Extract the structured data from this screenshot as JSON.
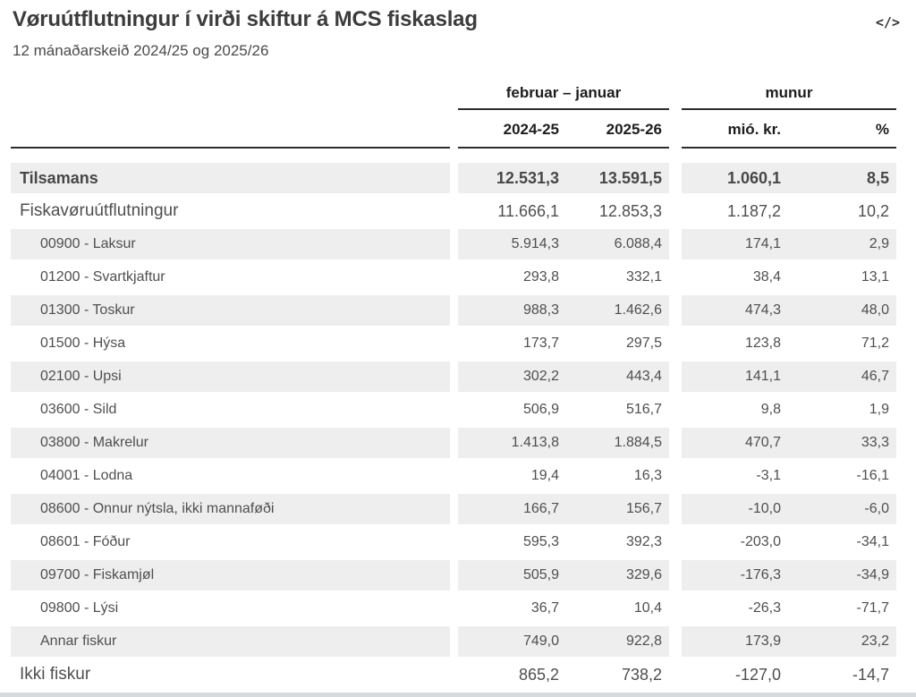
{
  "page": {
    "title": "Vøruútflutningur í virði skiftur á MCS fiskaslag",
    "subtitle": "12 mánaðarskeið 2024/25 og 2025/26",
    "embed_icon": "</>"
  },
  "colors": {
    "stripe": "#eeeeee",
    "rule": "#2d2d2d",
    "row_text": "#4f4f4f",
    "header_text": "#1d1d1d",
    "bottom_bar": "#d7dadc"
  },
  "table": {
    "group_headers": [
      {
        "label": "februar – januar"
      },
      {
        "label": "munur"
      }
    ],
    "column_headers": [
      "2024-25",
      "2025-26",
      "mió. kr.",
      "%"
    ],
    "rows": [
      {
        "label": "Tilsamans",
        "level": "total",
        "shaded": true,
        "values": [
          "12.531,3",
          "13.591,5",
          "1.060,1",
          "8,5"
        ]
      },
      {
        "label": "Fiskavøruútflutningur",
        "level": "group",
        "shaded": false,
        "values": [
          "11.666,1",
          "12.853,3",
          "1.187,2",
          "10,2"
        ]
      },
      {
        "label": "00900 - Laksur",
        "level": "sub",
        "shaded": true,
        "values": [
          "5.914,3",
          "6.088,4",
          "174,1",
          "2,9"
        ]
      },
      {
        "label": "01200 - Svartkjaftur",
        "level": "sub",
        "shaded": false,
        "values": [
          "293,8",
          "332,1",
          "38,4",
          "13,1"
        ]
      },
      {
        "label": "01300 - Toskur",
        "level": "sub",
        "shaded": true,
        "values": [
          "988,3",
          "1.462,6",
          "474,3",
          "48,0"
        ]
      },
      {
        "label": "01500 - Hýsa",
        "level": "sub",
        "shaded": false,
        "values": [
          "173,7",
          "297,5",
          "123,8",
          "71,2"
        ]
      },
      {
        "label": "02100 - Upsi",
        "level": "sub",
        "shaded": true,
        "values": [
          "302,2",
          "443,4",
          "141,1",
          "46,7"
        ]
      },
      {
        "label": "03600 - Sild",
        "level": "sub",
        "shaded": false,
        "values": [
          "506,9",
          "516,7",
          "9,8",
          "1,9"
        ]
      },
      {
        "label": "03800 - Makrelur",
        "level": "sub",
        "shaded": true,
        "values": [
          "1.413,8",
          "1.884,5",
          "470,7",
          "33,3"
        ]
      },
      {
        "label": "04001 - Lodna",
        "level": "sub",
        "shaded": false,
        "values": [
          "19,4",
          "16,3",
          "-3,1",
          "-16,1"
        ]
      },
      {
        "label": "08600 - Onnur nýtsla, ikki mannaføði",
        "level": "sub",
        "shaded": true,
        "values": [
          "166,7",
          "156,7",
          "-10,0",
          "-6,0"
        ]
      },
      {
        "label": "08601 - Fóður",
        "level": "sub",
        "shaded": false,
        "values": [
          "595,3",
          "392,3",
          "-203,0",
          "-34,1"
        ]
      },
      {
        "label": "09700 - Fiskamjøl",
        "level": "sub",
        "shaded": true,
        "values": [
          "505,9",
          "329,6",
          "-176,3",
          "-34,9"
        ]
      },
      {
        "label": "09800 - Lýsi",
        "level": "sub",
        "shaded": false,
        "values": [
          "36,7",
          "10,4",
          "-26,3",
          "-71,7"
        ]
      },
      {
        "label": "Annar fiskur",
        "level": "sub",
        "shaded": true,
        "values": [
          "749,0",
          "922,8",
          "173,9",
          "23,2"
        ]
      },
      {
        "label": "Ikki fiskur",
        "level": "group",
        "shaded": false,
        "values": [
          "865,2",
          "738,2",
          "-127,0",
          "-14,7"
        ]
      }
    ]
  }
}
